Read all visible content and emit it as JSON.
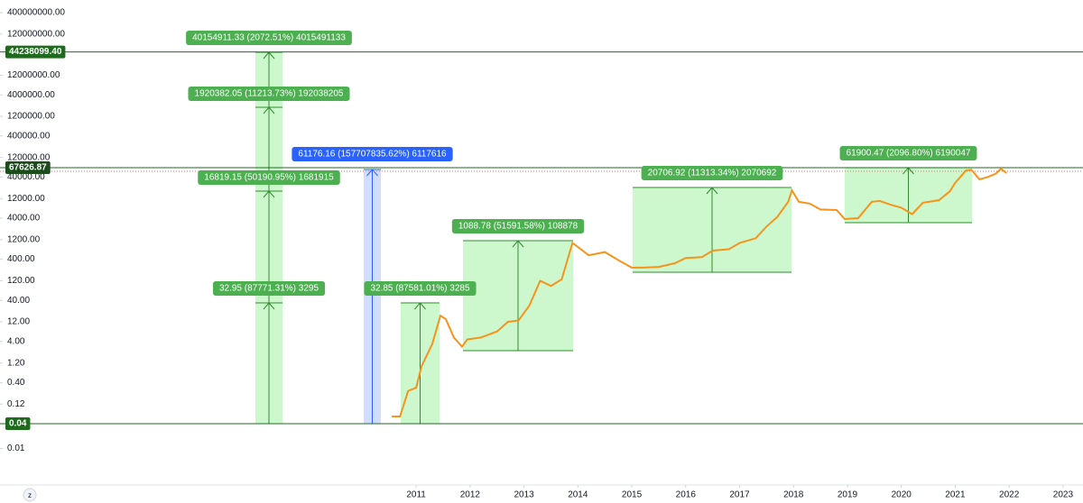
{
  "chart_data": {
    "type": "line",
    "log_scale": true,
    "color": "#f7931a",
    "xlim": [
      2003.28,
      2023.37
    ],
    "xticks": [
      2011,
      2012,
      2013,
      2014,
      2015,
      2016,
      2017,
      2018,
      2019,
      2020,
      2021,
      2022,
      2023
    ],
    "ylim": [
      0.00136,
      810000000
    ],
    "yticks": [
      {
        "value": 400000000,
        "label": "400000000.00"
      },
      {
        "value": 120000000,
        "label": "120000000.00"
      },
      {
        "value": 12000000,
        "label": "12000000.00"
      },
      {
        "value": 4000000,
        "label": "4000000.00"
      },
      {
        "value": 1200000,
        "label": "1200000.00"
      },
      {
        "value": 400000,
        "label": "400000.00"
      },
      {
        "value": 120000,
        "label": "120000.00"
      },
      {
        "value": 40000,
        "label": "40000.00"
      },
      {
        "value": 12000,
        "label": "12000.00"
      },
      {
        "value": 4000,
        "label": "4000.00"
      },
      {
        "value": 1200,
        "label": "1200.00"
      },
      {
        "value": 400,
        "label": "400.00"
      },
      {
        "value": 120,
        "label": "120.00"
      },
      {
        "value": 40,
        "label": "40.00"
      },
      {
        "value": 12,
        "label": "12.00"
      },
      {
        "value": 4,
        "label": "4.00"
      },
      {
        "value": 1.2,
        "label": "1.20"
      },
      {
        "value": 0.4,
        "label": "0.40"
      },
      {
        "value": 0.12,
        "label": "0.12"
      },
      {
        "value": 0.01,
        "label": "0.01"
      }
    ],
    "levels": [
      {
        "value": 44238099.4,
        "label": "44238099.40"
      },
      {
        "value": 67626.87,
        "label": "67626.87"
      },
      {
        "value": 0.04,
        "label": "0.04"
      }
    ],
    "x": [
      2010.55,
      2010.7,
      2010.85,
      2011.0,
      2011.1,
      2011.3,
      2011.45,
      2011.55,
      2011.7,
      2011.85,
      2011.95,
      2012.2,
      2012.5,
      2012.7,
      2012.9,
      2013.1,
      2013.3,
      2013.5,
      2013.7,
      2013.9,
      2014.0,
      2014.2,
      2014.5,
      2014.8,
      2015.0,
      2015.2,
      2015.5,
      2015.8,
      2016.0,
      2016.3,
      2016.5,
      2016.8,
      2017.0,
      2017.3,
      2017.5,
      2017.7,
      2017.9,
      2017.97,
      2018.1,
      2018.3,
      2018.5,
      2018.8,
      2018.95,
      2019.2,
      2019.45,
      2019.6,
      2019.8,
      2020.0,
      2020.2,
      2020.4,
      2020.7,
      2020.9,
      2021.0,
      2021.2,
      2021.3,
      2021.45,
      2021.6,
      2021.75,
      2021.85,
      2021.95
    ],
    "values": [
      0.06,
      0.06,
      0.25,
      0.3,
      1.0,
      3.5,
      17,
      14,
      5,
      3,
      4.5,
      5,
      7,
      12,
      13,
      30,
      120,
      90,
      130,
      1000,
      800,
      500,
      600,
      350,
      250,
      250,
      260,
      320,
      430,
      450,
      650,
      700,
      1000,
      1300,
      2500,
      4300,
      10000,
      19000,
      10000,
      9000,
      6500,
      6300,
      3800,
      4000,
      10000,
      10500,
      8500,
      7200,
      5000,
      9500,
      11000,
      18000,
      29000,
      58000,
      60000,
      35000,
      40000,
      48000,
      64000,
      50000
    ],
    "measurements": [
      "40154911.33 (2072.51%) 4015491133",
      "1920382.05 (11213.73%) 192038205",
      "16819.15 (50190.95%) 1681915",
      "32.95 (87771.31%) 3295",
      "61176.16 (157707835.62%) 6117616",
      "32.85 (87581.01%) 3285",
      "1088.78 (51591.58%) 108878",
      "20706.92 (11313.34%) 2070692",
      "61900.47 (2096.80%) 6190047"
    ]
  }
}
